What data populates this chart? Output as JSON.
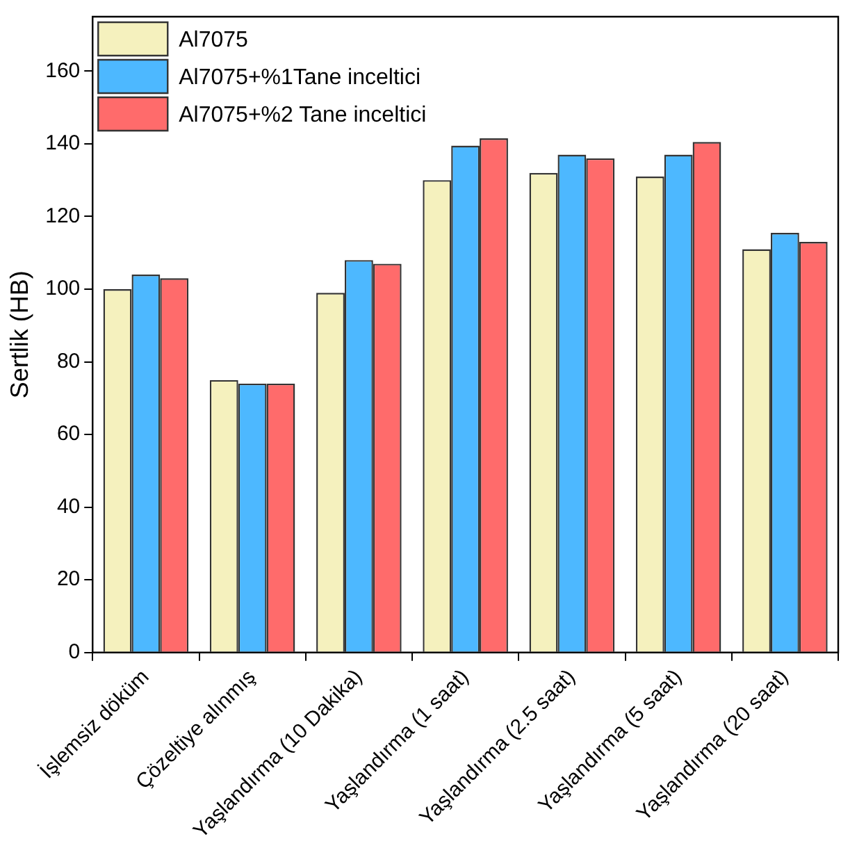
{
  "chart_data": {
    "type": "bar",
    "ylabel": "Sertlik (HB)",
    "categories": [
      "İşlemsiz döküm",
      "Çözeltiye alınmış",
      "Yaşlandırma (10 Dakika)",
      "Yaşlandırma (1 saat)",
      "Yaşlandırma (2.5 saat)",
      "Yaşlandırma (5 saat)",
      "Yaşlandırma (20 saat)"
    ],
    "series": [
      {
        "name": "Al7075",
        "color": "#f5f1be",
        "values": [
          100,
          75,
          99,
          130,
          132,
          131,
          111
        ]
      },
      {
        "name": "Al7075+%1Tane inceltici",
        "color": "#4db8ff",
        "values": [
          104,
          74,
          108,
          139.5,
          137,
          137,
          115.5
        ]
      },
      {
        "name": "Al7075+%2 Tane inceltici",
        "color": "#ff6b6b",
        "values": [
          103,
          74,
          107,
          141.5,
          136,
          140.5,
          113
        ]
      }
    ],
    "ylim": [
      0,
      175
    ],
    "yticks": [
      0,
      20,
      40,
      60,
      80,
      100,
      120,
      140,
      160
    ],
    "grid": false,
    "legend": "top left"
  }
}
